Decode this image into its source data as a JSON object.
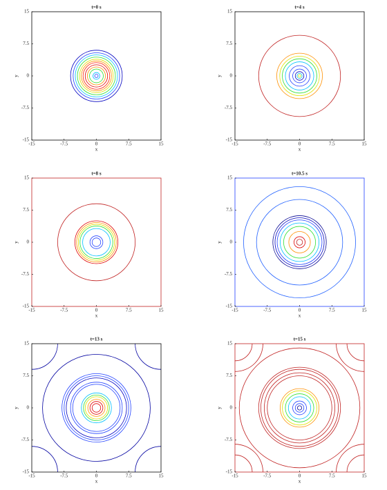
{
  "chart_data": [
    {
      "type": "contour",
      "title": "t=0 s",
      "xlabel": "x",
      "ylabel": "y",
      "xlim": [
        -15,
        15
      ],
      "ylim": [
        -15,
        15
      ],
      "xticks": [
        -15,
        -7.5,
        0,
        7.5,
        15
      ],
      "yticks": [
        -15,
        -7.5,
        0,
        7.5,
        15
      ],
      "frame_color": "#000000",
      "contours": [
        {
          "r": 6.0,
          "color": "#0000c0"
        },
        {
          "r": 5.4,
          "color": "#2040ff"
        },
        {
          "r": 4.9,
          "color": "#00c0ff"
        },
        {
          "r": 4.4,
          "color": "#30e030"
        },
        {
          "r": 3.9,
          "color": "#e0e000"
        },
        {
          "r": 3.5,
          "color": "#ff9000"
        },
        {
          "r": 3.1,
          "color": "#ff2000"
        },
        {
          "r": 2.6,
          "color": "#e00000"
        },
        {
          "r": 2.1,
          "color": "#ff9000"
        },
        {
          "r": 1.6,
          "color": "#30e030"
        },
        {
          "r": 0.8,
          "color": "#00c0ff"
        },
        {
          "r": 0.4,
          "color": "#2040ff"
        }
      ]
    },
    {
      "type": "contour",
      "title": "t=4 s",
      "xlabel": "x",
      "ylabel": "y",
      "xlim": [
        -15,
        15
      ],
      "ylim": [
        -15,
        15
      ],
      "xticks": [
        -15,
        -7.5,
        0,
        7.5,
        15
      ],
      "yticks": [
        -15,
        -7.5,
        0,
        7.5,
        15
      ],
      "frame_color": "#000000",
      "contours": [
        {
          "r": 9.5,
          "color": "#c02020"
        },
        {
          "r": 5.3,
          "color": "#ff9000"
        },
        {
          "r": 4.6,
          "color": "#e0e000"
        },
        {
          "r": 4.0,
          "color": "#30e030"
        },
        {
          "r": 3.3,
          "color": "#00c0ff"
        },
        {
          "r": 2.4,
          "color": "#2040ff"
        },
        {
          "r": 1.6,
          "color": "#2040ff"
        },
        {
          "r": 1.0,
          "color": "#0000c0"
        },
        {
          "r": 0.6,
          "color": "#00c0ff"
        },
        {
          "r": 0.3,
          "color": "#e0e000"
        }
      ]
    },
    {
      "type": "contour",
      "title": "t=8 s",
      "xlabel": "x",
      "ylabel": "y",
      "xlim": [
        -15,
        15
      ],
      "ylim": [
        -15,
        15
      ],
      "xticks": [
        -15,
        -7.5,
        0,
        7.5,
        15
      ],
      "yticks": [
        -15,
        -7.5,
        0,
        7.5,
        15
      ],
      "frame_color": "#c02020",
      "contours": [
        {
          "r": 9.0,
          "color": "#c02020"
        },
        {
          "r": 5.0,
          "color": "#e00000"
        },
        {
          "r": 4.6,
          "color": "#ff9000"
        },
        {
          "r": 4.2,
          "color": "#e0e000"
        },
        {
          "r": 3.8,
          "color": "#30e030"
        },
        {
          "r": 3.2,
          "color": "#00c0ff"
        },
        {
          "r": 1.5,
          "color": "#2040ff"
        },
        {
          "r": 1.0,
          "color": "#2040ff"
        }
      ]
    },
    {
      "type": "contour",
      "title": "t=10.5 s",
      "xlabel": "x",
      "ylabel": "y",
      "xlim": [
        -15,
        15
      ],
      "ylim": [
        -15,
        15
      ],
      "xticks": [
        -15,
        -7.5,
        0,
        7.5,
        15
      ],
      "yticks": [
        -15,
        -7.5,
        0,
        7.5,
        15
      ],
      "frame_color": "#2040ff",
      "contours": [
        {
          "r": 13.0,
          "color": "#2060ff"
        },
        {
          "r": 10.0,
          "color": "#2060ff"
        },
        {
          "r": 6.2,
          "color": "#000090"
        },
        {
          "r": 5.7,
          "color": "#0000c0"
        },
        {
          "r": 5.2,
          "color": "#2040ff"
        },
        {
          "r": 4.5,
          "color": "#00c0ff"
        },
        {
          "r": 3.7,
          "color": "#30e030"
        },
        {
          "r": 2.5,
          "color": "#ff9000"
        },
        {
          "r": 1.3,
          "color": "#e00000"
        },
        {
          "r": 0.7,
          "color": "#c02020"
        }
      ]
    },
    {
      "type": "contour",
      "title": "t=13 s",
      "xlabel": "x",
      "ylabel": "y",
      "xlim": [
        -15,
        15
      ],
      "ylim": [
        -15,
        15
      ],
      "xticks": [
        -15,
        -7.5,
        0,
        7.5,
        15
      ],
      "yticks": [
        -15,
        -7.5,
        0,
        7.5,
        15
      ],
      "frame_color": "#000000",
      "contours": [
        {
          "r": 12.5,
          "color": "#0000a0"
        },
        {
          "r": 8.0,
          "color": "#2040ff"
        },
        {
          "r": 7.5,
          "color": "#2040ff"
        },
        {
          "r": 7.0,
          "color": "#0000c0"
        },
        {
          "r": 6.0,
          "color": "#2040ff"
        },
        {
          "r": 5.5,
          "color": "#2040ff"
        },
        {
          "r": 3.5,
          "color": "#00c0ff"
        },
        {
          "r": 3.0,
          "color": "#30e030"
        },
        {
          "r": 2.6,
          "color": "#e0e000"
        },
        {
          "r": 2.0,
          "color": "#ff9000"
        },
        {
          "r": 1.5,
          "color": "#e00000"
        },
        {
          "r": 1.0,
          "color": "#e00000"
        },
        {
          "x": -15,
          "y": 15,
          "r": 6.0,
          "color": "#0000a0"
        },
        {
          "x": 15,
          "y": 15,
          "r": 6.0,
          "color": "#0000a0"
        },
        {
          "x": -15,
          "y": -15,
          "r": 6.0,
          "color": "#0000a0"
        },
        {
          "x": 15,
          "y": -15,
          "r": 6.0,
          "color": "#0000a0"
        }
      ]
    },
    {
      "type": "contour",
      "title": "t=15 s",
      "xlabel": "x",
      "ylabel": "y",
      "xlim": [
        -15,
        15
      ],
      "ylim": [
        -15,
        15
      ],
      "xticks": [
        -15,
        -7.5,
        0,
        7.5,
        15
      ],
      "yticks": [
        -15,
        -7.5,
        0,
        7.5,
        15
      ],
      "frame_color": "#c02020",
      "contours": [
        {
          "r": 14.0,
          "color": "#c02020"
        },
        {
          "r": 9.5,
          "color": "#c02020"
        },
        {
          "r": 9.0,
          "color": "#c02020"
        },
        {
          "r": 8.2,
          "color": "#c02020"
        },
        {
          "r": 7.5,
          "color": "#c02020"
        },
        {
          "r": 4.5,
          "color": "#ff9000"
        },
        {
          "r": 4.0,
          "color": "#e0e000"
        },
        {
          "r": 3.3,
          "color": "#30e030"
        },
        {
          "r": 2.6,
          "color": "#00c0ff"
        },
        {
          "r": 1.6,
          "color": "#2040ff"
        },
        {
          "r": 1.0,
          "color": "#2040ff"
        },
        {
          "r": 0.5,
          "color": "#000090"
        },
        {
          "x": -15,
          "y": 15,
          "r": 4.0,
          "color": "#c02020"
        },
        {
          "x": 15,
          "y": 15,
          "r": 4.0,
          "color": "#c02020"
        },
        {
          "x": -15,
          "y": -15,
          "r": 4.0,
          "color": "#c02020"
        },
        {
          "x": 15,
          "y": -15,
          "r": 4.0,
          "color": "#c02020"
        },
        {
          "x": -15,
          "y": 15,
          "r": 6.5,
          "color": "#c02020"
        },
        {
          "x": 15,
          "y": 15,
          "r": 6.5,
          "color": "#c02020"
        },
        {
          "x": -15,
          "y": -15,
          "r": 6.5,
          "color": "#c02020"
        },
        {
          "x": 15,
          "y": -15,
          "r": 6.5,
          "color": "#c02020"
        }
      ]
    }
  ]
}
